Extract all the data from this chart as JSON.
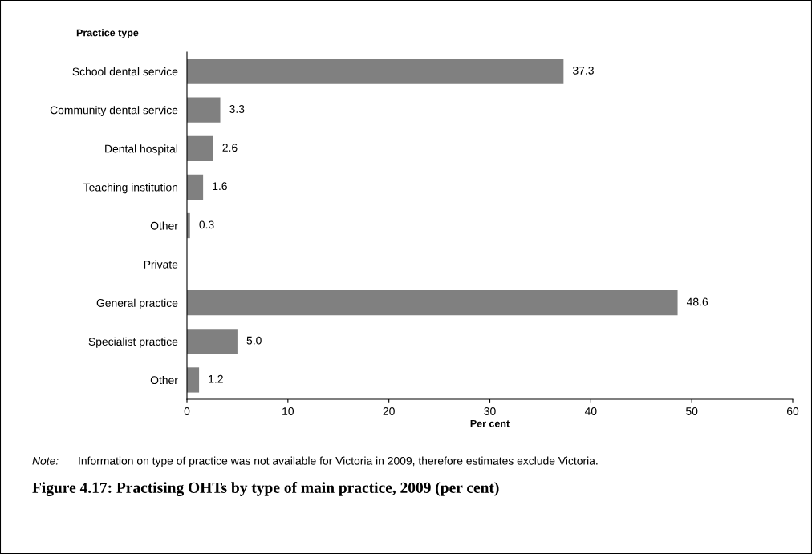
{
  "chart_data": {
    "type": "bar",
    "orientation": "horizontal",
    "ylabel": "Practice type",
    "xlabel": "Per cent",
    "categories": [
      "School dental service",
      "Community dental service",
      "Dental hospital",
      "Teaching institution",
      "Other",
      "Private",
      "General practice",
      "Specialist practice",
      "Other"
    ],
    "values": [
      37.3,
      3.3,
      2.6,
      1.6,
      0.3,
      null,
      48.6,
      5.0,
      1.2
    ],
    "value_labels": [
      "37.3",
      "3.3",
      "2.6",
      "1.6",
      "0.3",
      null,
      "48.6",
      "5.0",
      "1.2"
    ],
    "color": "#808080",
    "xlim": [
      0,
      60
    ],
    "xticks": [
      0,
      10,
      20,
      30,
      40,
      50,
      60
    ],
    "grid": false,
    "annotations": [
      "Note:",
      "Information on type of practice was not available for Victoria in 2009, therefore estimates exclude Victoria."
    ],
    "title": "Figure 4.17: Practising OHTs by type of main practice, 2009 (per cent)"
  }
}
